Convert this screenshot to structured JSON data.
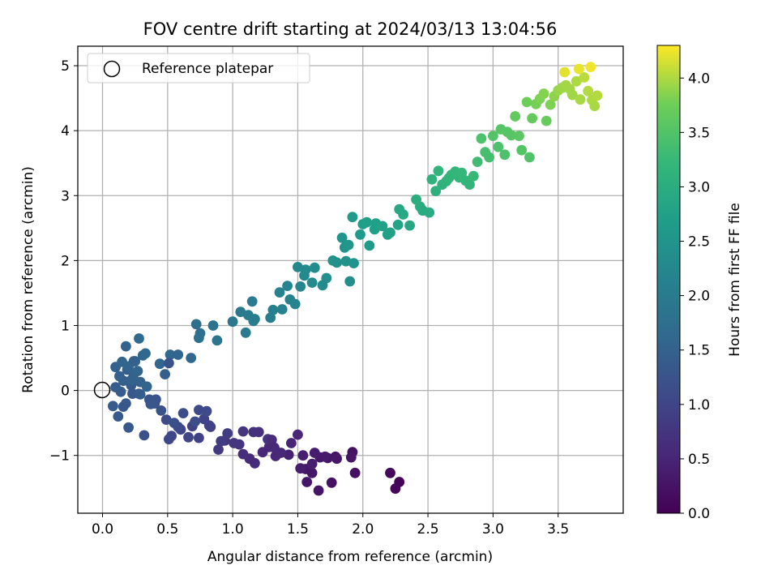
{
  "chart_data": {
    "type": "scatter",
    "title": "FOV centre drift starting at 2024/03/13 13:04:56",
    "xlabel": "Angular distance from reference (arcmin)",
    "ylabel": "Rotation from reference (arcmin)",
    "xlim": [
      -0.19,
      4.0
    ],
    "ylim": [
      -1.89,
      5.3
    ],
    "xticks": [
      0.0,
      0.5,
      1.0,
      1.5,
      2.0,
      2.5,
      3.0,
      3.5
    ],
    "yticks": [
      -1,
      0,
      1,
      2,
      3,
      4,
      5
    ],
    "grid": true,
    "legend": {
      "position": "top-left",
      "entries": [
        "Reference platepar"
      ]
    },
    "reference_point": {
      "x": 0.0,
      "y": 0.0,
      "name": "Reference platepar"
    },
    "colorbar": {
      "label": "Hours from first FF file",
      "range": [
        0.0,
        4.3
      ],
      "ticks": [
        0.0,
        0.5,
        1.0,
        1.5,
        2.0,
        2.5,
        3.0,
        3.5,
        4.0
      ],
      "colormap": "viridis"
    },
    "series": [
      {
        "x": [
          2.28,
          2.25,
          2.21,
          1.94,
          1.76,
          1.66,
          1.57,
          1.61,
          1.79,
          1.73,
          1.56,
          1.67,
          1.71,
          1.52,
          1.61,
          1.5,
          1.92,
          1.91,
          1.8,
          1.43,
          1.54,
          1.63,
          1.33,
          1.28,
          1.23,
          1.17,
          1.37,
          1.27,
          1.13,
          1.08,
          1.05,
          0.94,
          1.16,
          1.2,
          1.08,
          1.01,
          0.91,
          0.89,
          0.96,
          0.83,
          0.74,
          0.82,
          0.78,
          0.69,
          0.6,
          0.66,
          0.51,
          0.53,
          0.58,
          0.49,
          0.74,
          0.8,
          0.71,
          0.62,
          0.55,
          0.45,
          0.4,
          0.36,
          0.32,
          0.28,
          0.22,
          0.14,
          0.1,
          0.18,
          0.23,
          0.16,
          0.08,
          0.12,
          0.2,
          0.16,
          0.1,
          0.13,
          0.19,
          0.24,
          0.29,
          0.34,
          0.27,
          0.22,
          0.15,
          0.2,
          0.25,
          0.31,
          0.28,
          0.33,
          0.44,
          0.52,
          0.48,
          0.58,
          0.68,
          0.29,
          0.18,
          0.24,
          0.51,
          0.41,
          0.37,
          1.3,
          1.45,
          1.32
        ],
        "y": [
          -1.41,
          -1.51,
          -1.27,
          -1.27,
          -1.42,
          -1.54,
          -1.41,
          -1.27,
          -1.02,
          -1.04,
          -1.21,
          -1.03,
          -1.02,
          -1.2,
          -1.13,
          -0.68,
          -0.95,
          -1.03,
          -1.05,
          -0.99,
          -1.0,
          -0.96,
          -1.01,
          -0.87,
          -0.95,
          -1.12,
          -0.96,
          -0.75,
          -1.05,
          -0.98,
          -0.83,
          -0.77,
          -0.64,
          -0.64,
          -0.63,
          -0.81,
          -0.78,
          -0.91,
          -0.66,
          -0.56,
          -0.73,
          -0.54,
          -0.44,
          -0.55,
          -0.6,
          -0.72,
          -0.75,
          -0.7,
          -0.56,
          -0.45,
          -0.3,
          -0.32,
          -0.48,
          -0.35,
          -0.5,
          -0.31,
          -0.2,
          -0.14,
          -0.69,
          -0.05,
          0.08,
          -0.02,
          0.05,
          -0.2,
          -0.05,
          -0.25,
          -0.24,
          -0.4,
          -0.57,
          0.15,
          0.36,
          0.22,
          0.32,
          0.25,
          0.13,
          0.06,
          0.3,
          0.16,
          0.44,
          0.37,
          0.45,
          0.54,
          0.8,
          0.57,
          0.41,
          0.55,
          0.25,
          0.55,
          0.5,
          -0.06,
          0.68,
          0.45,
          0.42,
          -0.14,
          -0.21,
          -0.76,
          -0.81,
          -0.88
        ],
        "hours": [
          0.05,
          0.08,
          0.1,
          0.2,
          0.22,
          0.28,
          0.3,
          0.3,
          0.24,
          0.26,
          0.3,
          0.33,
          0.35,
          0.38,
          0.4,
          0.52,
          0.2,
          0.25,
          0.3,
          0.45,
          0.42,
          0.4,
          0.5,
          0.55,
          0.52,
          0.62,
          0.55,
          0.72,
          0.58,
          0.64,
          0.72,
          0.78,
          0.7,
          0.68,
          0.72,
          0.75,
          0.85,
          0.82,
          0.85,
          0.9,
          0.95,
          0.95,
          0.98,
          0.92,
          1.0,
          1.02,
          1.05,
          1.05,
          1.08,
          1.1,
          1.1,
          1.08,
          1.12,
          1.15,
          1.18,
          1.22,
          1.25,
          1.28,
          1.2,
          1.3,
          1.35,
          1.38,
          1.4,
          1.35,
          1.32,
          1.32,
          1.4,
          1.36,
          1.34,
          1.45,
          1.5,
          1.48,
          1.46,
          1.5,
          1.5,
          1.54,
          1.58,
          1.52,
          1.55,
          1.56,
          1.58,
          1.6,
          1.65,
          1.62,
          1.6,
          1.62,
          1.45,
          1.58,
          1.62,
          1.42,
          1.52,
          1.5,
          1.25,
          1.28,
          1.3,
          0.6,
          0.5,
          0.55
        ]
      },
      {
        "x": [
          0.72,
          0.75,
          0.74,
          0.85,
          0.88,
          1.0,
          1.06,
          1.1,
          1.12,
          1.15,
          1.17,
          1.16,
          1.29,
          1.31,
          1.36,
          1.38,
          1.42,
          1.44,
          1.48,
          1.5,
          1.52,
          1.55,
          1.56,
          1.61,
          1.63,
          1.69,
          1.72,
          1.77,
          1.8,
          1.84,
          1.86,
          1.87,
          1.89,
          1.9,
          1.92,
          1.93,
          1.98,
          2.0,
          2.03,
          2.05,
          2.09,
          2.1,
          2.15,
          2.19,
          2.21,
          2.28,
          2.27,
          2.31,
          2.36,
          2.41,
          2.44,
          2.46,
          2.51,
          2.53,
          2.56,
          2.58,
          2.61,
          2.64,
          2.66,
          2.68,
          2.71,
          2.74,
          2.76,
          2.79,
          2.82,
          2.85,
          2.88,
          2.91,
          2.94,
          2.97,
          3.0,
          3.04,
          3.06,
          3.09,
          3.11,
          3.14,
          3.17,
          3.2,
          3.22,
          3.26,
          3.28,
          3.3,
          3.33,
          3.36,
          3.39,
          3.41,
          3.44,
          3.47,
          3.5,
          3.53,
          3.56,
          3.59,
          3.61,
          3.64,
          3.67,
          3.7,
          3.73,
          3.76,
          3.78,
          3.8,
          3.75,
          3.66,
          3.55
        ],
        "y": [
          1.02,
          0.88,
          0.81,
          1.0,
          0.77,
          1.06,
          1.21,
          0.89,
          1.16,
          1.37,
          1.1,
          1.07,
          1.12,
          1.24,
          1.51,
          1.25,
          1.61,
          1.4,
          1.33,
          1.9,
          1.6,
          1.77,
          1.86,
          1.66,
          1.89,
          1.62,
          1.73,
          2.0,
          1.97,
          2.35,
          2.2,
          1.99,
          2.24,
          1.68,
          2.67,
          1.96,
          2.4,
          2.56,
          2.59,
          2.23,
          2.48,
          2.57,
          2.53,
          2.4,
          2.43,
          2.79,
          2.55,
          2.71,
          2.54,
          2.94,
          2.83,
          2.77,
          2.74,
          3.25,
          3.07,
          3.38,
          3.17,
          3.22,
          3.27,
          3.32,
          3.37,
          3.28,
          3.35,
          3.23,
          3.17,
          3.3,
          3.52,
          3.88,
          3.67,
          3.59,
          3.92,
          3.75,
          4.02,
          3.63,
          3.98,
          3.93,
          4.22,
          3.92,
          3.7,
          4.44,
          3.59,
          4.19,
          4.41,
          4.49,
          4.57,
          4.15,
          4.4,
          4.53,
          4.62,
          4.66,
          4.7,
          4.64,
          4.55,
          4.76,
          4.48,
          4.82,
          4.61,
          4.47,
          4.38,
          4.54,
          4.98,
          4.95,
          4.9
        ],
        "hours": [
          1.75,
          1.78,
          1.8,
          1.85,
          1.88,
          1.92,
          1.96,
          1.98,
          2.0,
          2.02,
          2.04,
          2.04,
          2.08,
          2.1,
          2.14,
          2.12,
          2.18,
          2.16,
          2.18,
          2.25,
          2.22,
          2.28,
          2.3,
          2.3,
          2.35,
          2.32,
          2.38,
          2.45,
          2.44,
          2.52,
          2.5,
          2.45,
          2.55,
          2.4,
          2.62,
          2.5,
          2.62,
          2.68,
          2.7,
          2.62,
          2.7,
          2.72,
          2.75,
          2.72,
          2.75,
          2.88,
          2.8,
          2.9,
          2.88,
          3.0,
          2.98,
          2.95,
          2.96,
          3.1,
          3.05,
          3.15,
          3.1,
          3.12,
          3.15,
          3.18,
          3.2,
          3.18,
          3.22,
          3.2,
          3.18,
          3.25,
          3.32,
          3.45,
          3.4,
          3.38,
          3.5,
          3.45,
          3.55,
          3.45,
          3.55,
          3.55,
          3.65,
          3.58,
          3.52,
          3.75,
          3.5,
          3.68,
          3.78,
          3.82,
          3.85,
          3.7,
          3.82,
          3.88,
          3.92,
          3.94,
          3.96,
          3.96,
          3.95,
          4.0,
          3.98,
          4.05,
          4.02,
          4.0,
          3.98,
          4.02,
          4.25,
          4.22,
          4.2
        ]
      }
    ]
  }
}
